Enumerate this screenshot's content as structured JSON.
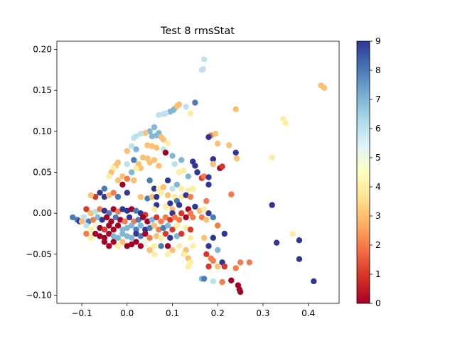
{
  "chart_data": {
    "type": "scatter",
    "title": "Test 8 rmsStat",
    "xlabel": "",
    "ylabel": "",
    "xlim": [
      -0.155,
      0.468
    ],
    "ylim": [
      -0.11,
      0.21
    ],
    "x_ticks": [
      -0.1,
      0.0,
      0.1,
      0.2,
      0.3,
      0.4
    ],
    "x_tick_labels": [
      "−0.1",
      "0.0",
      "0.1",
      "0.2",
      "0.3",
      "0.4"
    ],
    "y_ticks": [
      -0.1,
      -0.05,
      0.0,
      0.05,
      0.1,
      0.15,
      0.2
    ],
    "y_tick_labels": [
      "−0.10",
      "−0.05",
      "0.00",
      "0.05",
      "0.10",
      "0.15",
      "0.20"
    ],
    "colorbar": {
      "cmap": "RdYlBu",
      "range": [
        0,
        9
      ],
      "ticks": [
        0,
        1,
        2,
        3,
        4,
        5,
        6,
        7,
        8,
        9
      ],
      "tick_labels": [
        "0",
        "1",
        "2",
        "3",
        "4",
        "5",
        "6",
        "7",
        "8",
        "9"
      ],
      "stops": [
        "#a50026",
        "#d73027",
        "#f46d43",
        "#fdae61",
        "#fee090",
        "#ffffbf",
        "#e0f3f8",
        "#abd9e9",
        "#74add1",
        "#4575b4",
        "#313695"
      ]
    },
    "points": [
      [
        0.17,
        0.188,
        6
      ],
      [
        0.165,
        0.175,
        6
      ],
      [
        0.168,
        0.176,
        6
      ],
      [
        0.428,
        0.156,
        3
      ],
      [
        0.435,
        0.153,
        3
      ],
      [
        0.15,
        0.135,
        8
      ],
      [
        0.11,
        0.131,
        3
      ],
      [
        0.115,
        0.133,
        3
      ],
      [
        0.105,
        0.128,
        3
      ],
      [
        0.13,
        0.13,
        6
      ],
      [
        0.095,
        0.124,
        7
      ],
      [
        0.102,
        0.126,
        7
      ],
      [
        0.14,
        0.122,
        4
      ],
      [
        0.07,
        0.12,
        6
      ],
      [
        0.08,
        0.121,
        6
      ],
      [
        0.085,
        0.122,
        6
      ],
      [
        0.24,
        0.127,
        3
      ],
      [
        0.345,
        0.115,
        4
      ],
      [
        0.35,
        0.11,
        4
      ],
      [
        0.06,
        0.105,
        7
      ],
      [
        0.05,
        0.1,
        7
      ],
      [
        0.055,
        0.094,
        7
      ],
      [
        0.04,
        0.098,
        3
      ],
      [
        0.03,
        0.097,
        6
      ],
      [
        0.02,
        0.094,
        6
      ],
      [
        0.015,
        0.092,
        6
      ],
      [
        0.07,
        0.098,
        7
      ],
      [
        0.065,
        0.095,
        7
      ],
      [
        0.075,
        0.093,
        3
      ],
      [
        0.08,
        0.09,
        3
      ],
      [
        0.185,
        0.095,
        2
      ],
      [
        0.195,
        0.097,
        3
      ],
      [
        0.18,
        0.093,
        9
      ],
      [
        0.01,
        0.082,
        6
      ],
      [
        0.02,
        0.078,
        7
      ],
      [
        0.045,
        0.083,
        3
      ],
      [
        0.055,
        0.082,
        3
      ],
      [
        0.065,
        0.08,
        3
      ],
      [
        0.08,
        0.078,
        6
      ],
      [
        0.09,
        0.085,
        4
      ],
      [
        0.0,
        0.076,
        3
      ],
      [
        0.085,
        0.074,
        0
      ],
      [
        0.2,
        0.085,
        3
      ],
      [
        0.225,
        0.083,
        3
      ],
      [
        0.24,
        0.074,
        9
      ],
      [
        0.242,
        0.067,
        3
      ],
      [
        0.32,
        0.068,
        4
      ],
      [
        0.1,
        0.07,
        7
      ],
      [
        0.12,
        0.065,
        7
      ],
      [
        0.145,
        0.063,
        9
      ],
      [
        0.15,
        0.058,
        9
      ],
      [
        0.155,
        0.05,
        9
      ],
      [
        0.19,
        0.066,
        9
      ],
      [
        0.19,
        0.06,
        3
      ],
      [
        0.205,
        0.055,
        0
      ],
      [
        0.21,
        0.057,
        1
      ],
      [
        0.025,
        0.06,
        3
      ],
      [
        0.03,
        0.055,
        3
      ],
      [
        0.035,
        0.068,
        3
      ],
      [
        0.045,
        0.067,
        3
      ],
      [
        0.05,
        0.062,
        3
      ],
      [
        0.06,
        0.065,
        3
      ],
      [
        0.07,
        0.058,
        3
      ],
      [
        0.015,
        0.065,
        8
      ],
      [
        -0.02,
        0.062,
        3
      ],
      [
        -0.025,
        0.058,
        3
      ],
      [
        -0.03,
        0.055,
        4
      ],
      [
        -0.035,
        0.05,
        3
      ],
      [
        0.0,
        0.06,
        6
      ],
      [
        0.01,
        0.05,
        7
      ],
      [
        0.02,
        0.055,
        4
      ],
      [
        0.105,
        0.06,
        6
      ],
      [
        0.115,
        0.05,
        4
      ],
      [
        0.125,
        0.052,
        4
      ],
      [
        0.135,
        0.045,
        7
      ],
      [
        0.165,
        0.043,
        1
      ],
      [
        0.17,
        0.045,
        2
      ],
      [
        0.18,
        0.044,
        9
      ],
      [
        0.09,
        0.04,
        9
      ],
      [
        0.05,
        0.04,
        8
      ],
      [
        -0.01,
        0.045,
        3
      ],
      [
        -0.02,
        0.04,
        3
      ],
      [
        -0.04,
        0.045,
        4
      ],
      [
        -0.01,
        0.035,
        0
      ],
      [
        0.0,
        0.042,
        2
      ],
      [
        0.015,
        0.04,
        3
      ],
      [
        0.06,
        0.03,
        9
      ],
      [
        0.07,
        0.03,
        4
      ],
      [
        0.08,
        0.032,
        3
      ],
      [
        0.1,
        0.03,
        6
      ],
      [
        0.11,
        0.035,
        7
      ],
      [
        0.12,
        0.03,
        4
      ],
      [
        0.135,
        0.028,
        4
      ],
      [
        0.145,
        0.03,
        4
      ],
      [
        0.18,
        0.035,
        9
      ],
      [
        -0.05,
        0.03,
        8
      ],
      [
        -0.06,
        0.025,
        9
      ],
      [
        -0.07,
        0.02,
        1
      ],
      [
        -0.08,
        0.022,
        3
      ],
      [
        -0.05,
        0.02,
        9
      ],
      [
        -0.04,
        0.022,
        3
      ],
      [
        -0.03,
        0.025,
        2
      ],
      [
        -0.02,
        0.02,
        8
      ],
      [
        0.0,
        0.025,
        9
      ],
      [
        0.03,
        0.02,
        3
      ],
      [
        0.045,
        0.018,
        8
      ],
      [
        0.055,
        0.02,
        3
      ],
      [
        0.065,
        0.02,
        9
      ],
      [
        0.075,
        0.025,
        4
      ],
      [
        0.09,
        0.022,
        3
      ],
      [
        0.105,
        0.02,
        4
      ],
      [
        0.12,
        0.02,
        4
      ],
      [
        0.13,
        0.022,
        9
      ],
      [
        0.14,
        0.02,
        2
      ],
      [
        0.175,
        0.015,
        2
      ],
      [
        0.23,
        0.023,
        2
      ],
      [
        0.32,
        0.01,
        9
      ],
      [
        0.11,
        0.015,
        8
      ],
      [
        0.095,
        0.012,
        9
      ],
      [
        0.065,
        0.01,
        9
      ],
      [
        0.06,
        0.005,
        4
      ],
      [
        0.085,
        0.008,
        4
      ],
      [
        0.1,
        0.005,
        3
      ],
      [
        0.115,
        0.01,
        9
      ],
      [
        0.135,
        0.005,
        0
      ],
      [
        0.15,
        0.008,
        9
      ],
      [
        0.16,
        0.003,
        3
      ],
      [
        0.17,
        0.005,
        4
      ],
      [
        0.18,
        0.0,
        9
      ],
      [
        0.14,
        0.0,
        2
      ],
      [
        0.12,
        0.0,
        1
      ],
      [
        0.1,
        0.0,
        9
      ],
      [
        -0.09,
        0.005,
        1
      ],
      [
        -0.08,
        0.0,
        3
      ],
      [
        -0.07,
        0.002,
        6
      ],
      [
        -0.06,
        0.005,
        2
      ],
      [
        -0.05,
        0.003,
        9
      ],
      [
        -0.04,
        0.0,
        8
      ],
      [
        -0.03,
        0.005,
        0
      ],
      [
        -0.02,
        0.002,
        2
      ],
      [
        -0.01,
        0.005,
        9
      ],
      [
        0.0,
        0.003,
        9
      ],
      [
        0.01,
        0.005,
        0
      ],
      [
        0.02,
        0.003,
        8
      ],
      [
        0.03,
        0.0,
        9
      ],
      [
        0.04,
        -0.002,
        1
      ],
      [
        -0.1,
        -0.005,
        5
      ],
      [
        -0.11,
        -0.008,
        8
      ],
      [
        -0.12,
        -0.005,
        8
      ],
      [
        -0.105,
        -0.01,
        9
      ],
      [
        -0.095,
        -0.005,
        6
      ],
      [
        -0.085,
        -0.01,
        8
      ],
      [
        -0.075,
        -0.008,
        2
      ],
      [
        -0.065,
        -0.005,
        7
      ],
      [
        -0.055,
        -0.008,
        9
      ],
      [
        -0.045,
        -0.005,
        0
      ],
      [
        -0.035,
        -0.01,
        0
      ],
      [
        -0.025,
        -0.005,
        8
      ],
      [
        -0.015,
        -0.008,
        0
      ],
      [
        -0.005,
        -0.01,
        2
      ],
      [
        0.005,
        -0.005,
        9
      ],
      [
        0.015,
        -0.01,
        2
      ],
      [
        0.025,
        -0.008,
        8
      ],
      [
        0.035,
        -0.005,
        0
      ],
      [
        0.045,
        -0.01,
        0
      ],
      [
        0.055,
        -0.008,
        7
      ],
      [
        0.065,
        -0.005,
        1
      ],
      [
        0.075,
        -0.01,
        2
      ],
      [
        0.085,
        -0.005,
        2
      ],
      [
        0.095,
        -0.008,
        1
      ],
      [
        0.105,
        -0.005,
        2
      ],
      [
        0.115,
        -0.008,
        2
      ],
      [
        0.13,
        -0.005,
        0
      ],
      [
        0.145,
        -0.005,
        2
      ],
      [
        0.165,
        -0.005,
        2
      ],
      [
        0.175,
        -0.008,
        3
      ],
      [
        0.19,
        -0.005,
        8
      ],
      [
        -0.09,
        -0.015,
        6
      ],
      [
        -0.08,
        -0.02,
        4
      ],
      [
        -0.07,
        -0.015,
        5
      ],
      [
        -0.06,
        -0.018,
        0
      ],
      [
        -0.05,
        -0.02,
        1
      ],
      [
        -0.04,
        -0.015,
        0
      ],
      [
        -0.03,
        -0.02,
        0
      ],
      [
        -0.02,
        -0.015,
        0
      ],
      [
        -0.01,
        -0.02,
        7
      ],
      [
        0.0,
        -0.018,
        7
      ],
      [
        0.01,
        -0.015,
        7
      ],
      [
        0.02,
        -0.02,
        8
      ],
      [
        0.03,
        -0.015,
        7
      ],
      [
        0.04,
        -0.02,
        9
      ],
      [
        0.05,
        -0.018,
        8
      ],
      [
        0.06,
        -0.015,
        3
      ],
      [
        0.07,
        -0.02,
        2
      ],
      [
        0.08,
        -0.018,
        8
      ],
      [
        0.09,
        -0.015,
        7
      ],
      [
        0.1,
        -0.02,
        1
      ],
      [
        0.11,
        -0.015,
        4
      ],
      [
        0.13,
        -0.018,
        4
      ],
      [
        0.14,
        -0.02,
        1
      ],
      [
        0.2,
        -0.015,
        2
      ],
      [
        -0.1,
        -0.01,
        3
      ],
      [
        -0.09,
        -0.025,
        2
      ],
      [
        -0.08,
        -0.03,
        4
      ],
      [
        -0.07,
        -0.025,
        0
      ],
      [
        -0.06,
        -0.028,
        0
      ],
      [
        -0.05,
        -0.03,
        0
      ],
      [
        -0.04,
        -0.025,
        0
      ],
      [
        -0.03,
        -0.028,
        7
      ],
      [
        -0.02,
        -0.03,
        7
      ],
      [
        -0.01,
        -0.025,
        7
      ],
      [
        0.0,
        -0.028,
        7
      ],
      [
        0.01,
        -0.03,
        7
      ],
      [
        0.02,
        -0.025,
        9
      ],
      [
        0.03,
        -0.028,
        8
      ],
      [
        0.04,
        -0.025,
        0
      ],
      [
        0.05,
        -0.03,
        2
      ],
      [
        0.065,
        -0.028,
        3
      ],
      [
        0.075,
        -0.03,
        4
      ],
      [
        0.085,
        -0.025,
        1
      ],
      [
        0.095,
        -0.03,
        9
      ],
      [
        0.11,
        -0.028,
        7
      ],
      [
        0.12,
        -0.025,
        1
      ],
      [
        0.14,
        -0.03,
        4
      ],
      [
        0.17,
        -0.03,
        3
      ],
      [
        0.19,
        -0.03,
        9
      ],
      [
        0.215,
        -0.025,
        9
      ],
      [
        -0.05,
        -0.035,
        0
      ],
      [
        -0.04,
        -0.04,
        0
      ],
      [
        -0.03,
        -0.035,
        0
      ],
      [
        -0.02,
        -0.04,
        4
      ],
      [
        -0.01,
        -0.035,
        3
      ],
      [
        0.0,
        -0.04,
        0
      ],
      [
        0.01,
        -0.038,
        0
      ],
      [
        0.02,
        -0.035,
        0
      ],
      [
        0.03,
        -0.04,
        0
      ],
      [
        0.04,
        -0.035,
        5
      ],
      [
        0.05,
        -0.045,
        3
      ],
      [
        0.06,
        -0.04,
        4
      ],
      [
        0.075,
        -0.04,
        8
      ],
      [
        0.09,
        -0.04,
        0
      ],
      [
        0.1,
        -0.045,
        3
      ],
      [
        0.115,
        -0.04,
        4
      ],
      [
        0.13,
        -0.045,
        3
      ],
      [
        0.145,
        -0.04,
        4
      ],
      [
        0.18,
        -0.04,
        9
      ],
      [
        0.2,
        -0.045,
        7
      ],
      [
        0.33,
        -0.036,
        9
      ],
      [
        0.38,
        -0.033,
        9
      ],
      [
        0.365,
        -0.025,
        4
      ],
      [
        0.06,
        -0.05,
        4
      ],
      [
        0.09,
        -0.05,
        4
      ],
      [
        0.125,
        -0.05,
        4
      ],
      [
        0.135,
        -0.055,
        3
      ],
      [
        0.175,
        -0.05,
        1
      ],
      [
        0.185,
        -0.055,
        2
      ],
      [
        0.19,
        -0.058,
        2
      ],
      [
        0.21,
        -0.06,
        9
      ],
      [
        0.25,
        -0.06,
        2
      ],
      [
        0.27,
        -0.06,
        2
      ],
      [
        0.38,
        -0.056,
        9
      ],
      [
        0.14,
        -0.06,
        4
      ],
      [
        0.135,
        -0.065,
        4
      ],
      [
        0.18,
        -0.065,
        1
      ],
      [
        0.2,
        -0.065,
        3
      ],
      [
        0.215,
        -0.065,
        1
      ],
      [
        0.24,
        -0.067,
        2
      ],
      [
        0.165,
        -0.08,
        7
      ],
      [
        0.17,
        -0.08,
        8
      ],
      [
        0.19,
        -0.083,
        6
      ],
      [
        0.21,
        -0.084,
        2
      ],
      [
        0.23,
        -0.082,
        0
      ],
      [
        0.245,
        -0.088,
        0
      ],
      [
        0.248,
        -0.093,
        0
      ],
      [
        0.25,
        -0.096,
        0
      ],
      [
        0.412,
        -0.083,
        9
      ]
    ]
  }
}
